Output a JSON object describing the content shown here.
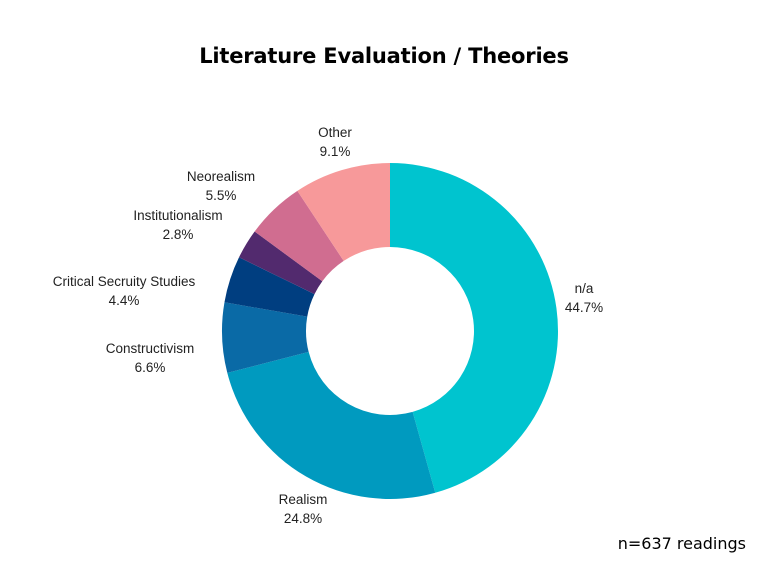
{
  "chart_data": {
    "type": "pie",
    "style": "donut",
    "title": "Literature Evaluation / Theories",
    "slices": [
      {
        "label": "n/a",
        "value_text": "44.7%",
        "value": 44.7,
        "color": "#00c4cf"
      },
      {
        "label": "Realism",
        "value_text": "24.8%",
        "value": 24.8,
        "color": "#009abf"
      },
      {
        "label": "Constructivism",
        "value_text": "6.6%",
        "value": 6.6,
        "color": "#0a6aa6"
      },
      {
        "label": "Critical Secruity Studies",
        "value_text": "4.4%",
        "value": 4.4,
        "color": "#003e80"
      },
      {
        "label": "Institutionalism",
        "value_text": "2.8%",
        "value": 2.8,
        "color": "#522a6e"
      },
      {
        "label": "Neorealism",
        "value_text": "5.5%",
        "value": 5.5,
        "color": "#d06d90"
      },
      {
        "label": "Other",
        "value_text": "9.1%",
        "value": 9.1,
        "color": "#f7999a"
      }
    ],
    "legend": "none"
  },
  "footnote": "n=637 readings"
}
